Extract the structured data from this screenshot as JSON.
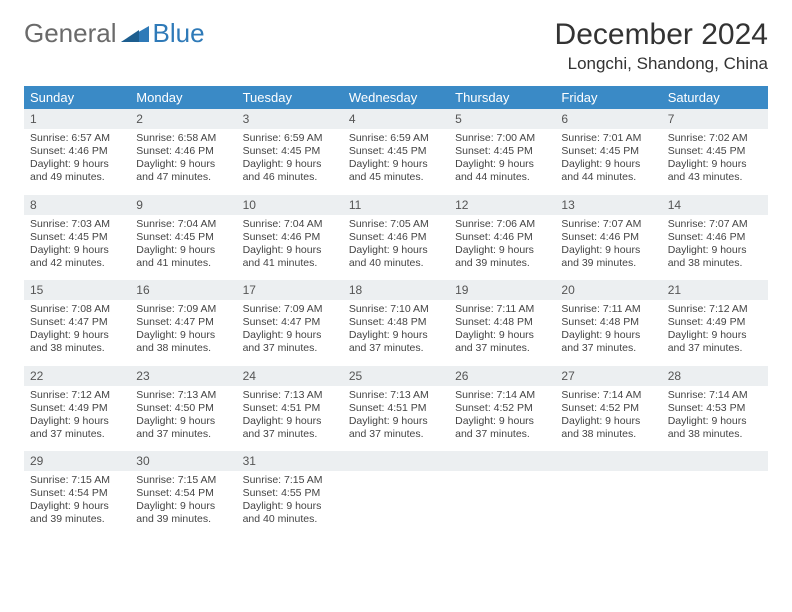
{
  "brand": {
    "general": "General",
    "blue": "Blue"
  },
  "title": "December 2024",
  "location": "Longchi, Shandong, China",
  "colors": {
    "header_bg": "#3a8ac6",
    "header_fg": "#ffffff",
    "daynum_bg": "#eceff1",
    "border": "#2f7ab8",
    "text": "#333333",
    "logo_gray": "#6a6a6a",
    "logo_blue": "#2f7ab8"
  },
  "days_of_week": [
    "Sunday",
    "Monday",
    "Tuesday",
    "Wednesday",
    "Thursday",
    "Friday",
    "Saturday"
  ],
  "weeks": [
    [
      {
        "n": 1,
        "sunrise": "6:57 AM",
        "sunset": "4:46 PM",
        "dl": "9 hours and 49 minutes."
      },
      {
        "n": 2,
        "sunrise": "6:58 AM",
        "sunset": "4:46 PM",
        "dl": "9 hours and 47 minutes."
      },
      {
        "n": 3,
        "sunrise": "6:59 AM",
        "sunset": "4:45 PM",
        "dl": "9 hours and 46 minutes."
      },
      {
        "n": 4,
        "sunrise": "6:59 AM",
        "sunset": "4:45 PM",
        "dl": "9 hours and 45 minutes."
      },
      {
        "n": 5,
        "sunrise": "7:00 AM",
        "sunset": "4:45 PM",
        "dl": "9 hours and 44 minutes."
      },
      {
        "n": 6,
        "sunrise": "7:01 AM",
        "sunset": "4:45 PM",
        "dl": "9 hours and 44 minutes."
      },
      {
        "n": 7,
        "sunrise": "7:02 AM",
        "sunset": "4:45 PM",
        "dl": "9 hours and 43 minutes."
      }
    ],
    [
      {
        "n": 8,
        "sunrise": "7:03 AM",
        "sunset": "4:45 PM",
        "dl": "9 hours and 42 minutes."
      },
      {
        "n": 9,
        "sunrise": "7:04 AM",
        "sunset": "4:45 PM",
        "dl": "9 hours and 41 minutes."
      },
      {
        "n": 10,
        "sunrise": "7:04 AM",
        "sunset": "4:46 PM",
        "dl": "9 hours and 41 minutes."
      },
      {
        "n": 11,
        "sunrise": "7:05 AM",
        "sunset": "4:46 PM",
        "dl": "9 hours and 40 minutes."
      },
      {
        "n": 12,
        "sunrise": "7:06 AM",
        "sunset": "4:46 PM",
        "dl": "9 hours and 39 minutes."
      },
      {
        "n": 13,
        "sunrise": "7:07 AM",
        "sunset": "4:46 PM",
        "dl": "9 hours and 39 minutes."
      },
      {
        "n": 14,
        "sunrise": "7:07 AM",
        "sunset": "4:46 PM",
        "dl": "9 hours and 38 minutes."
      }
    ],
    [
      {
        "n": 15,
        "sunrise": "7:08 AM",
        "sunset": "4:47 PM",
        "dl": "9 hours and 38 minutes."
      },
      {
        "n": 16,
        "sunrise": "7:09 AM",
        "sunset": "4:47 PM",
        "dl": "9 hours and 38 minutes."
      },
      {
        "n": 17,
        "sunrise": "7:09 AM",
        "sunset": "4:47 PM",
        "dl": "9 hours and 37 minutes."
      },
      {
        "n": 18,
        "sunrise": "7:10 AM",
        "sunset": "4:48 PM",
        "dl": "9 hours and 37 minutes."
      },
      {
        "n": 19,
        "sunrise": "7:11 AM",
        "sunset": "4:48 PM",
        "dl": "9 hours and 37 minutes."
      },
      {
        "n": 20,
        "sunrise": "7:11 AM",
        "sunset": "4:48 PM",
        "dl": "9 hours and 37 minutes."
      },
      {
        "n": 21,
        "sunrise": "7:12 AM",
        "sunset": "4:49 PM",
        "dl": "9 hours and 37 minutes."
      }
    ],
    [
      {
        "n": 22,
        "sunrise": "7:12 AM",
        "sunset": "4:49 PM",
        "dl": "9 hours and 37 minutes."
      },
      {
        "n": 23,
        "sunrise": "7:13 AM",
        "sunset": "4:50 PM",
        "dl": "9 hours and 37 minutes."
      },
      {
        "n": 24,
        "sunrise": "7:13 AM",
        "sunset": "4:51 PM",
        "dl": "9 hours and 37 minutes."
      },
      {
        "n": 25,
        "sunrise": "7:13 AM",
        "sunset": "4:51 PM",
        "dl": "9 hours and 37 minutes."
      },
      {
        "n": 26,
        "sunrise": "7:14 AM",
        "sunset": "4:52 PM",
        "dl": "9 hours and 37 minutes."
      },
      {
        "n": 27,
        "sunrise": "7:14 AM",
        "sunset": "4:52 PM",
        "dl": "9 hours and 38 minutes."
      },
      {
        "n": 28,
        "sunrise": "7:14 AM",
        "sunset": "4:53 PM",
        "dl": "9 hours and 38 minutes."
      }
    ],
    [
      {
        "n": 29,
        "sunrise": "7:15 AM",
        "sunset": "4:54 PM",
        "dl": "9 hours and 39 minutes."
      },
      {
        "n": 30,
        "sunrise": "7:15 AM",
        "sunset": "4:54 PM",
        "dl": "9 hours and 39 minutes."
      },
      {
        "n": 31,
        "sunrise": "7:15 AM",
        "sunset": "4:55 PM",
        "dl": "9 hours and 40 minutes."
      },
      null,
      null,
      null,
      null
    ]
  ],
  "labels": {
    "sunrise": "Sunrise:",
    "sunset": "Sunset:",
    "daylight": "Daylight:"
  }
}
